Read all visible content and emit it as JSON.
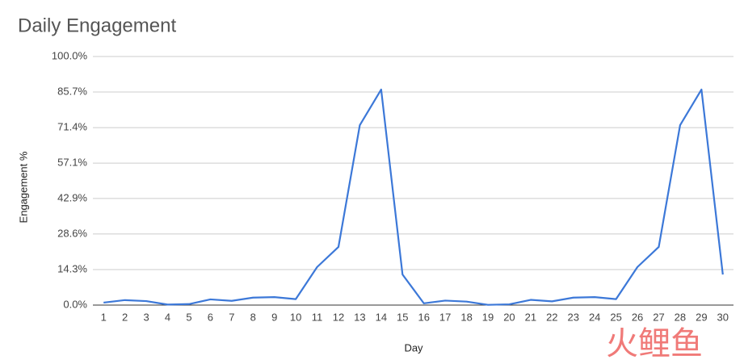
{
  "chart_data": {
    "type": "line",
    "title": "Daily Engagement",
    "x_label": "Day",
    "y_label": "Engagement %",
    "categories": [
      "1",
      "2",
      "3",
      "4",
      "5",
      "6",
      "7",
      "8",
      "9",
      "10",
      "11",
      "12",
      "13",
      "14",
      "15",
      "16",
      "17",
      "18",
      "19",
      "20",
      "21",
      "22",
      "23",
      "24",
      "25",
      "26",
      "27",
      "28",
      "29",
      "30"
    ],
    "values": [
      1.0,
      2.0,
      1.6,
      0.2,
      0.4,
      2.3,
      1.7,
      3.0,
      3.2,
      2.4,
      15.3,
      23.4,
      72.4,
      86.7,
      12.3,
      0.7,
      1.8,
      1.4,
      0.1,
      0.3,
      2.1,
      1.5,
      3.0,
      3.2,
      2.4,
      15.3,
      23.4,
      72.4,
      86.7,
      12.3
    ],
    "color": "#3c78d8",
    "ylim": [
      0,
      100
    ],
    "yticks": [
      {
        "value": 0,
        "label": "0.0%"
      },
      {
        "value": 14.3,
        "label": "14.3%"
      },
      {
        "value": 28.6,
        "label": "28.6%"
      },
      {
        "value": 42.9,
        "label": "42.9%"
      },
      {
        "value": 57.1,
        "label": "57.1%"
      },
      {
        "value": 71.4,
        "label": "71.4%"
      },
      {
        "value": 85.7,
        "label": "85.7%"
      },
      {
        "value": 100,
        "label": "100.0%"
      }
    ],
    "grid": true,
    "watermark": "火鲤鱼"
  }
}
